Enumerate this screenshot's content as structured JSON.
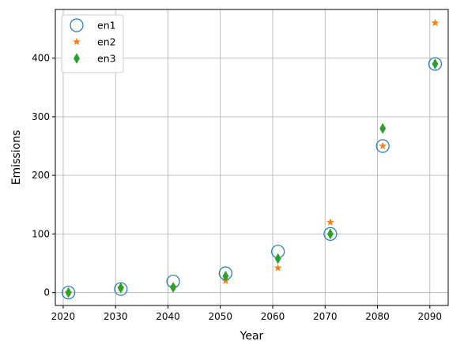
{
  "chart_data": {
    "type": "scatter",
    "xlabel": "Year",
    "ylabel": "Emissions",
    "xlim": [
      2018.5,
      2093.5
    ],
    "ylim": [
      -22,
      483
    ],
    "xticks": [
      2020,
      2030,
      2040,
      2050,
      2060,
      2070,
      2080,
      2090
    ],
    "yticks": [
      0,
      100,
      200,
      300,
      400
    ],
    "grid": true,
    "legend": "top-left",
    "series": [
      {
        "name": "en1",
        "marker": "open-circle",
        "color": "#1f77b4",
        "x": [
          2021,
          2031,
          2041,
          2051,
          2061,
          2071,
          2081,
          2091
        ],
        "y": [
          0,
          6,
          19,
          33,
          70,
          100,
          250,
          390
        ]
      },
      {
        "name": "en2",
        "marker": "star",
        "color": "#ff7f0e",
        "x": [
          2021,
          2031,
          2041,
          2051,
          2061,
          2071,
          2081,
          2091
        ],
        "y": [
          0,
          8,
          10,
          20,
          42,
          120,
          250,
          460
        ]
      },
      {
        "name": "en3",
        "marker": "thin-diamond",
        "color": "#2ca02c",
        "x": [
          2021,
          2031,
          2041,
          2051,
          2061,
          2071,
          2081,
          2091
        ],
        "y": [
          0,
          8,
          9,
          28,
          58,
          100,
          280,
          390
        ]
      }
    ]
  }
}
